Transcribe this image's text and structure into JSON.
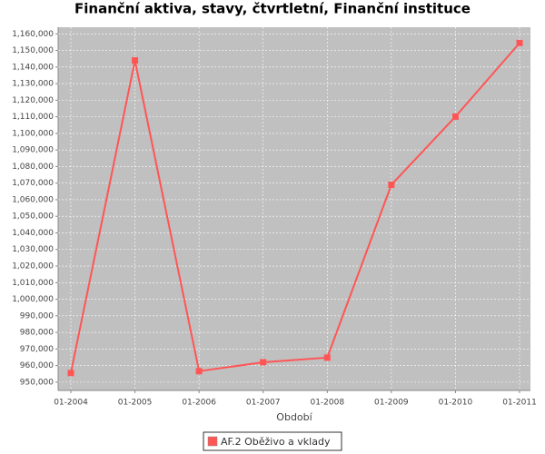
{
  "chart_data": {
    "type": "line",
    "title": "Finanční aktiva, stavy, čtvrtletní, Finanční instituce",
    "x_label": "Období",
    "categories": [
      "01-2004",
      "01-2005",
      "01-2006",
      "01-2007",
      "01-2008",
      "01-2009",
      "01-2010",
      "01-2011"
    ],
    "series": [
      {
        "name": "AF.2 Oběživo a vklady",
        "color": "#ff5555",
        "values": [
          955500,
          1144000,
          956600,
          962000,
          964800,
          1069000,
          1110100,
          1154500
        ]
      }
    ],
    "ylim": [
      945000,
      1164000
    ],
    "yticks": [
      {
        "value": 950000,
        "label": "950,000"
      },
      {
        "value": 960000,
        "label": "960,000"
      },
      {
        "value": 970000,
        "label": "970,000"
      },
      {
        "value": 980000,
        "label": "980,000"
      },
      {
        "value": 990000,
        "label": "990,000"
      },
      {
        "value": 1000000,
        "label": "1,000,000"
      },
      {
        "value": 1010000,
        "label": "1,010,000"
      },
      {
        "value": 1020000,
        "label": "1,020,000"
      },
      {
        "value": 1030000,
        "label": "1,030,000"
      },
      {
        "value": 1040000,
        "label": "1,040,000"
      },
      {
        "value": 1050000,
        "label": "1,050,000"
      },
      {
        "value": 1060000,
        "label": "1,060,000"
      },
      {
        "value": 1070000,
        "label": "1,070,000"
      },
      {
        "value": 1080000,
        "label": "1,080,000"
      },
      {
        "value": 1090000,
        "label": "1,090,000"
      },
      {
        "value": 1100000,
        "label": "1,100,000"
      },
      {
        "value": 1110000,
        "label": "1,110,000"
      },
      {
        "value": 1120000,
        "label": "1,120,000"
      },
      {
        "value": 1130000,
        "label": "1,130,000"
      },
      {
        "value": 1140000,
        "label": "1,140,000"
      },
      {
        "value": 1150000,
        "label": "1,150,000"
      },
      {
        "value": 1160000,
        "label": "1,160,000"
      }
    ],
    "grid": true,
    "legend": "bottom"
  }
}
